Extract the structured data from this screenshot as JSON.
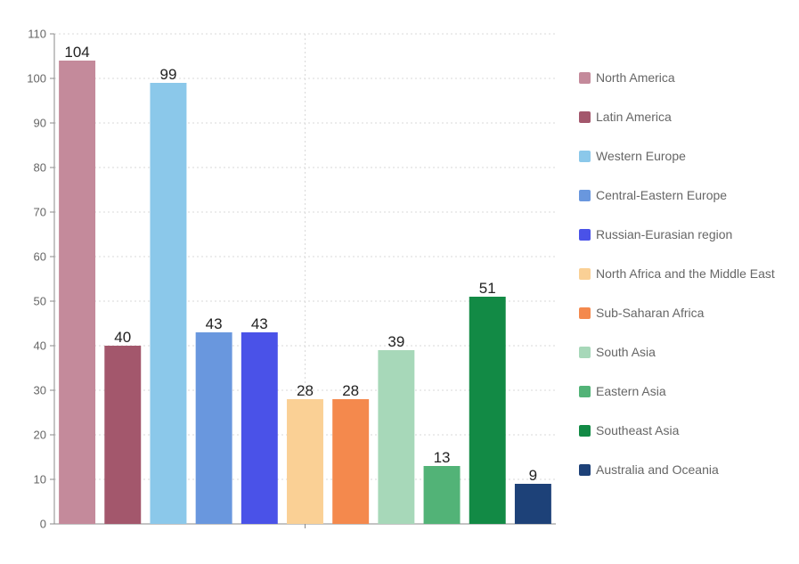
{
  "chart_data": {
    "type": "bar",
    "title": "",
    "xlabel": "",
    "ylabel": "",
    "ylim": [
      0,
      110
    ],
    "yticks": [
      0,
      10,
      20,
      30,
      40,
      50,
      60,
      70,
      80,
      90,
      100,
      110
    ],
    "grid": true,
    "legend_position": "right",
    "categories": [
      "North America",
      "Latin America",
      "Western Europe",
      "Central-Eastern Europe",
      "Russian-Eurasian region",
      "North Africa and the Middle East",
      "Sub-Saharan Africa",
      "South Asia",
      "Eastern Asia",
      "Southeast Asia",
      "Australia and Oceania"
    ],
    "values": [
      104,
      40,
      99,
      43,
      43,
      28,
      28,
      39,
      13,
      51,
      9
    ],
    "colors": [
      "#c48a9b",
      "#a3576c",
      "#8bc8ea",
      "#6997de",
      "#4a52e8",
      "#fad095",
      "#f4894d",
      "#a7d8b9",
      "#52b377",
      "#128a45",
      "#1d4178"
    ]
  }
}
